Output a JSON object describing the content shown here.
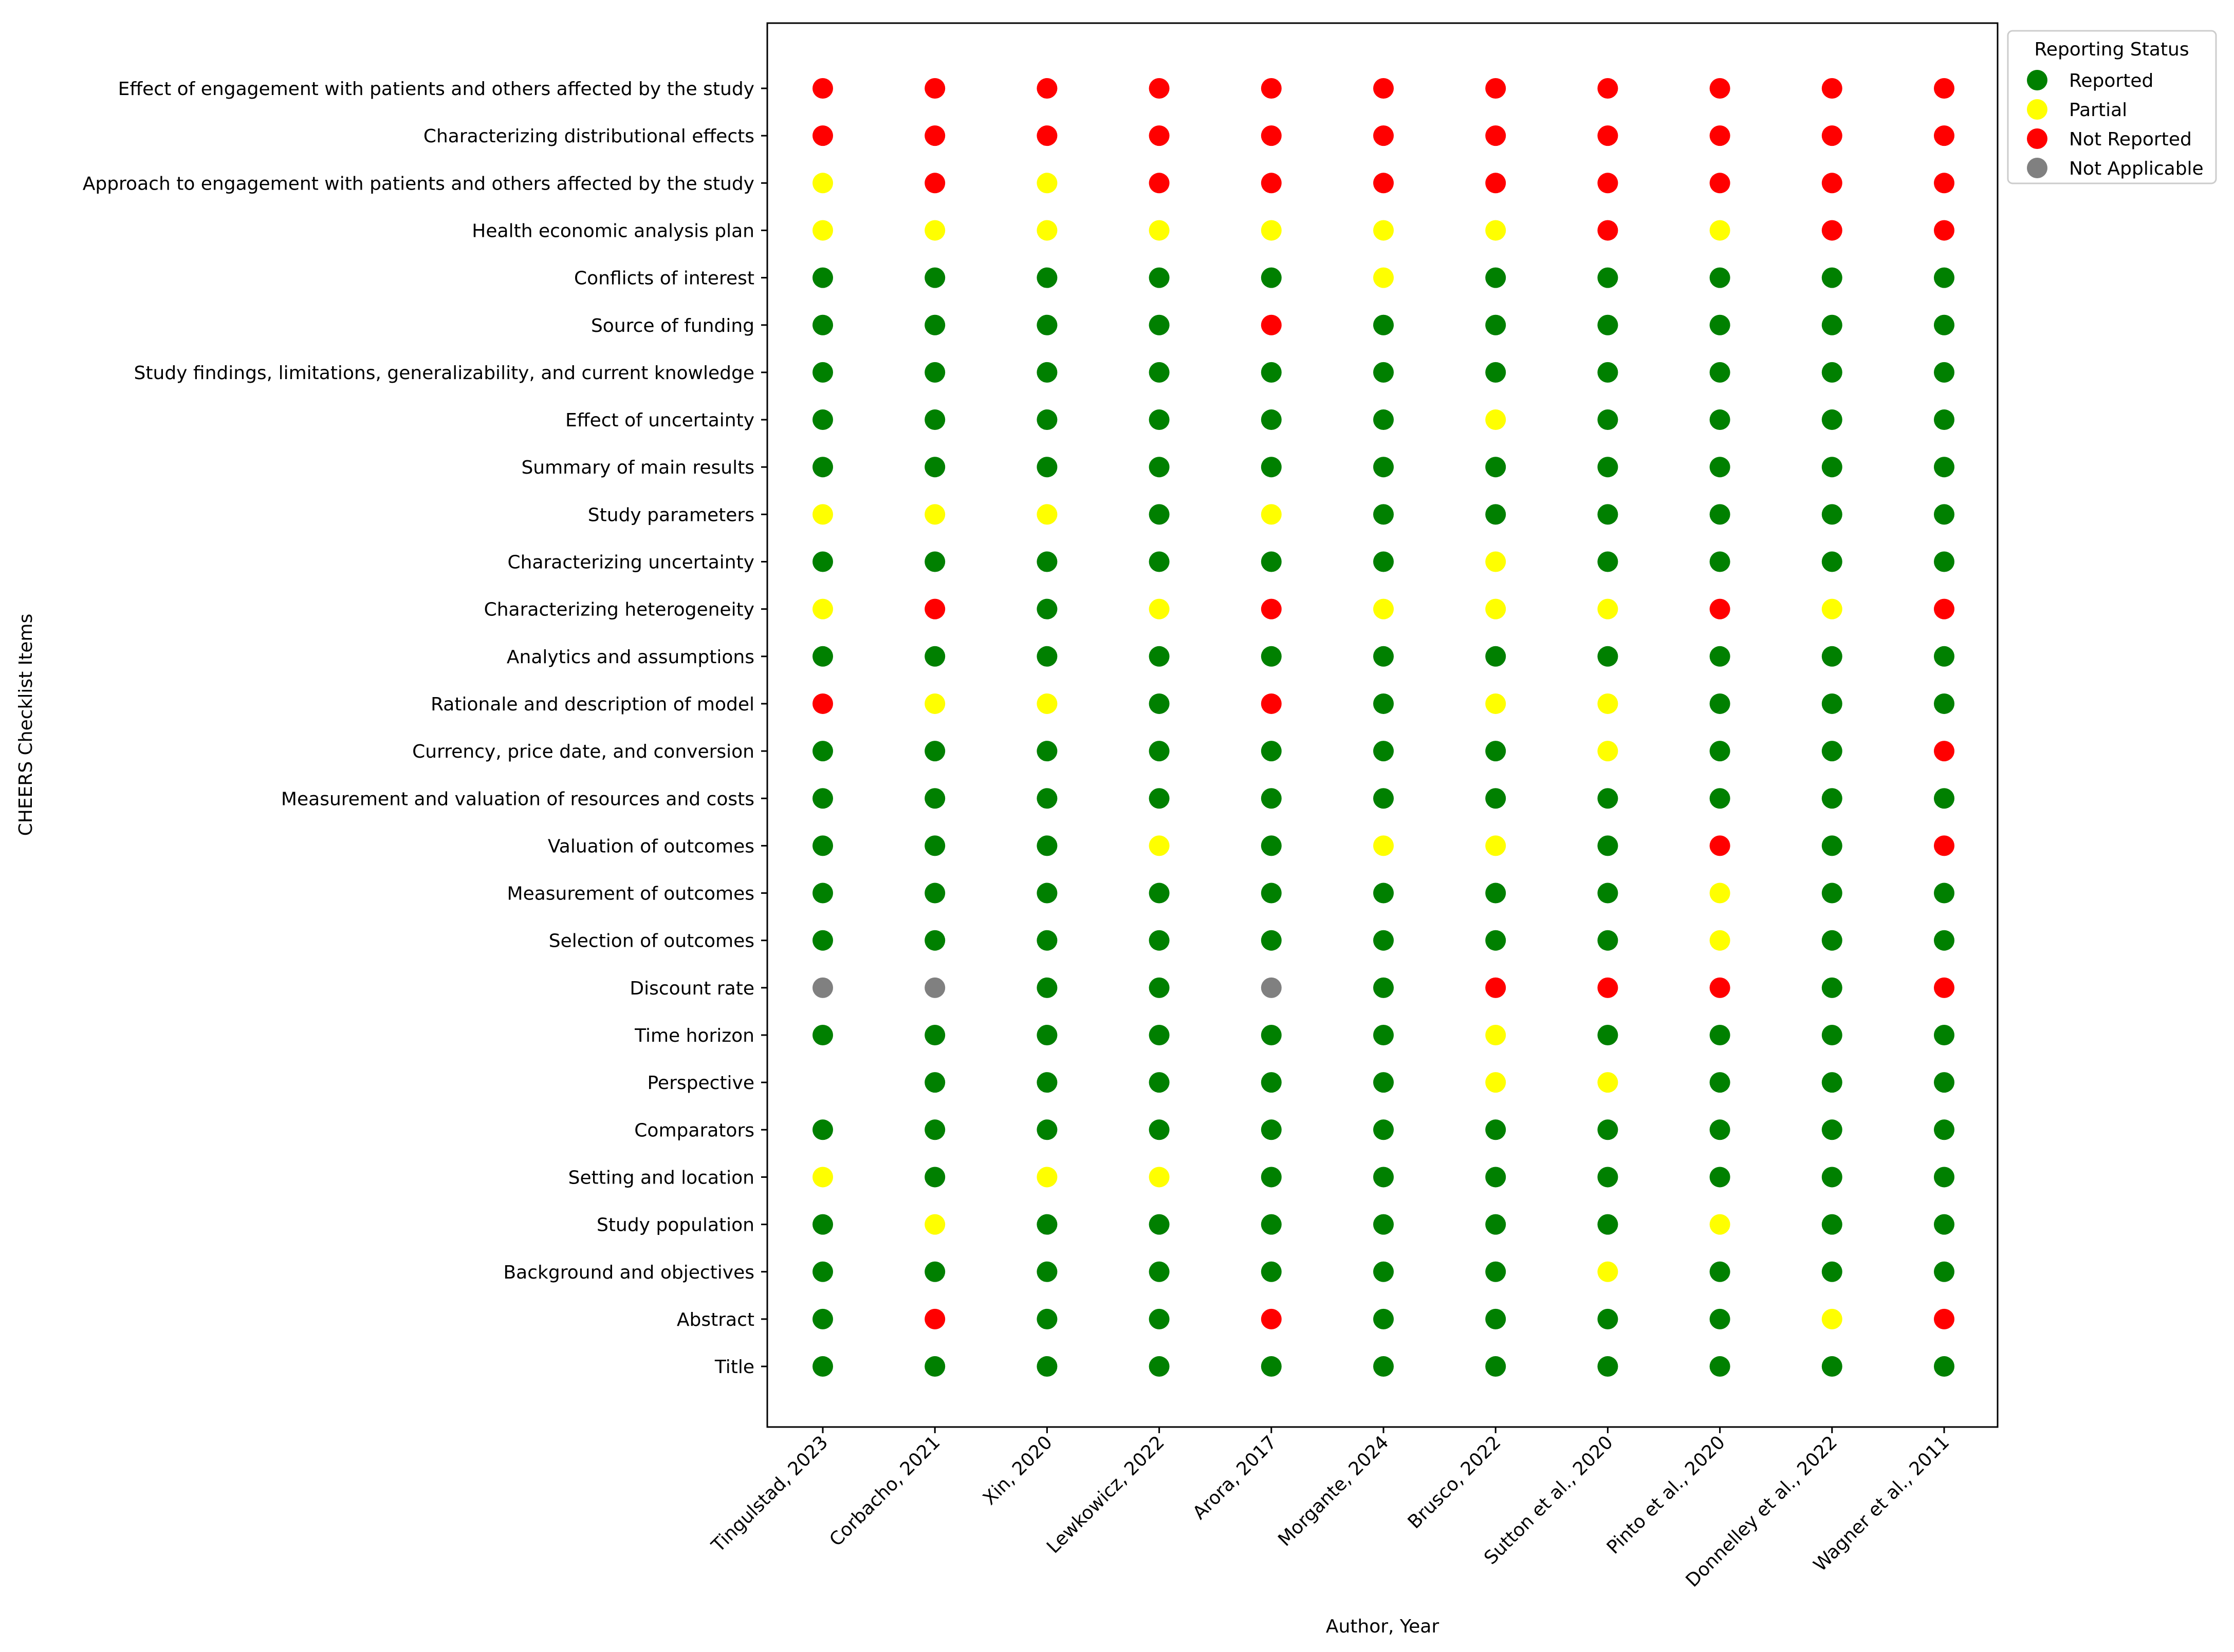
{
  "chart_data": {
    "type": "scatter",
    "title": "",
    "xlabel": "Author, Year",
    "ylabel": "CHEERS Checklist Items",
    "categories_x": [
      "Tingulstad, 2023",
      "Corbacho, 2021",
      "Xin, 2020",
      "Lewkowicz, 2022",
      "Arora, 2017",
      "Morgante, 2024",
      "Brusco, 2022",
      "Sutton et al., 2020",
      "Pinto et al., 2020",
      "Donnelley et al., 2022",
      "Wagner et al., 2011"
    ],
    "items_top_to_bottom": [
      "Effect of engagement with patients and others affected by the study",
      "Characterizing distributional effects",
      "Approach to engagement with patients and others affected by the study",
      "Health economic analysis plan",
      "Conflicts of interest",
      "Source of funding",
      "Study findings, limitations, generalizability, and current knowledge",
      "Effect of uncertainty",
      "Summary of main results",
      "Study parameters",
      "Characterizing uncertainty",
      "Characterizing heterogeneity",
      "Analytics and assumptions",
      "Rationale and description of model",
      "Currency, price date, and conversion",
      "Measurement and valuation of resources and costs",
      "Valuation of outcomes",
      "Measurement of outcomes",
      "Selection of outcomes",
      "Discount rate",
      "Time horizon",
      "Perspective",
      "Comparators",
      "Setting and location",
      "Study population",
      "Background and objectives",
      "Abstract",
      "Title"
    ],
    "status_matrix": [
      [
        "N",
        "N",
        "N",
        "N",
        "N",
        "N",
        "N",
        "N",
        "N",
        "N",
        "N"
      ],
      [
        "N",
        "N",
        "N",
        "N",
        "N",
        "N",
        "N",
        "N",
        "N",
        "N",
        "N"
      ],
      [
        "P",
        "N",
        "P",
        "N",
        "N",
        "N",
        "N",
        "N",
        "N",
        "N",
        "N"
      ],
      [
        "P",
        "P",
        "P",
        "P",
        "P",
        "P",
        "P",
        "N",
        "P",
        "N",
        "N"
      ],
      [
        "R",
        "R",
        "R",
        "R",
        "R",
        "P",
        "R",
        "R",
        "R",
        "R",
        "R"
      ],
      [
        "R",
        "R",
        "R",
        "R",
        "N",
        "R",
        "R",
        "R",
        "R",
        "R",
        "R"
      ],
      [
        "R",
        "R",
        "R",
        "R",
        "R",
        "R",
        "R",
        "R",
        "R",
        "R",
        "R"
      ],
      [
        "R",
        "R",
        "R",
        "R",
        "R",
        "R",
        "P",
        "R",
        "R",
        "R",
        "R"
      ],
      [
        "R",
        "R",
        "R",
        "R",
        "R",
        "R",
        "R",
        "R",
        "R",
        "R",
        "R"
      ],
      [
        "P",
        "P",
        "P",
        "R",
        "P",
        "R",
        "R",
        "R",
        "R",
        "R",
        "R"
      ],
      [
        "R",
        "R",
        "R",
        "R",
        "R",
        "R",
        "P",
        "R",
        "R",
        "R",
        "R"
      ],
      [
        "P",
        "N",
        "R",
        "P",
        "N",
        "P",
        "P",
        "P",
        "N",
        "P",
        "N"
      ],
      [
        "R",
        "R",
        "R",
        "R",
        "R",
        "R",
        "R",
        "R",
        "R",
        "R",
        "R"
      ],
      [
        "N",
        "P",
        "P",
        "R",
        "N",
        "R",
        "P",
        "P",
        "R",
        "R",
        "R"
      ],
      [
        "R",
        "R",
        "R",
        "R",
        "R",
        "R",
        "R",
        "P",
        "R",
        "R",
        "N"
      ],
      [
        "R",
        "R",
        "R",
        "R",
        "R",
        "R",
        "R",
        "R",
        "R",
        "R",
        "R"
      ],
      [
        "R",
        "R",
        "R",
        "P",
        "R",
        "P",
        "P",
        "R",
        "N",
        "R",
        "N"
      ],
      [
        "R",
        "R",
        "R",
        "R",
        "R",
        "R",
        "R",
        "R",
        "P",
        "R",
        "R"
      ],
      [
        "R",
        "R",
        "R",
        "R",
        "R",
        "R",
        "R",
        "R",
        "P",
        "R",
        "R"
      ],
      [
        "A",
        "A",
        "R",
        "R",
        "A",
        "R",
        "N",
        "N",
        "N",
        "R",
        "N"
      ],
      [
        "R",
        "R",
        "R",
        "R",
        "R",
        "R",
        "P",
        "R",
        "R",
        "R",
        "R"
      ],
      [
        "",
        "R",
        "R",
        "R",
        "R",
        "R",
        "P",
        "P",
        "R",
        "R",
        "R"
      ],
      [
        "R",
        "R",
        "R",
        "R",
        "R",
        "R",
        "R",
        "R",
        "R",
        "R",
        "R"
      ],
      [
        "P",
        "R",
        "P",
        "P",
        "R",
        "R",
        "R",
        "R",
        "R",
        "R",
        "R"
      ],
      [
        "R",
        "P",
        "R",
        "R",
        "R",
        "R",
        "R",
        "R",
        "P",
        "R",
        "R"
      ],
      [
        "R",
        "R",
        "R",
        "R",
        "R",
        "R",
        "R",
        "P",
        "R",
        "R",
        "R"
      ],
      [
        "R",
        "N",
        "R",
        "R",
        "N",
        "R",
        "R",
        "R",
        "R",
        "P",
        "N"
      ],
      [
        "R",
        "R",
        "R",
        "R",
        "R",
        "R",
        "R",
        "R",
        "R",
        "R",
        "R"
      ]
    ],
    "status_codes": {
      "R": "Reported",
      "P": "Partial",
      "N": "Not Reported",
      "A": "Not Applicable"
    },
    "legend": {
      "title": "Reporting Status",
      "placement": "upper-right-outside",
      "entries": [
        {
          "code": "R",
          "label": "Reported",
          "color": "#008000"
        },
        {
          "code": "P",
          "label": "Partial",
          "color": "#ffff00"
        },
        {
          "code": "N",
          "label": "Not Reported",
          "color": "#ff0000"
        },
        {
          "code": "A",
          "label": "Not Applicable",
          "color": "#808080"
        }
      ]
    },
    "grid": false
  }
}
